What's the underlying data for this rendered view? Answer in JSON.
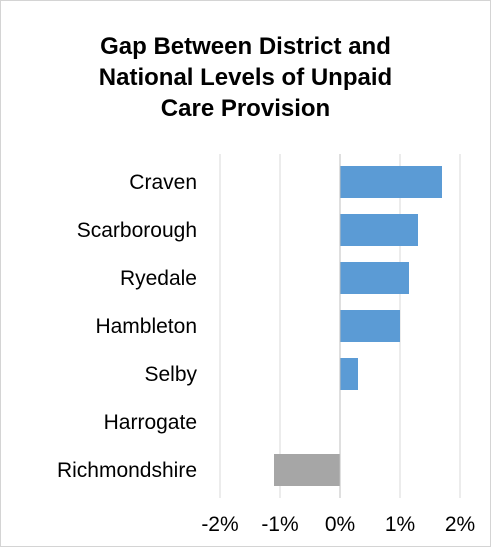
{
  "chart_data": {
    "type": "bar",
    "orientation": "horizontal",
    "title_lines": [
      "Gap Between District and",
      "National Levels of Unpaid",
      "Care Provision"
    ],
    "categories": [
      "Craven",
      "Scarborough",
      "Ryedale",
      "Hambleton",
      "Selby",
      "Harrogate",
      "Richmondshire"
    ],
    "values": [
      1.7,
      1.3,
      1.15,
      1.0,
      0.3,
      0.0,
      -1.1
    ],
    "xlim": [
      -2,
      2
    ],
    "x_ticks": [
      -2,
      -1,
      0,
      1,
      2
    ],
    "x_tick_labels": [
      "-2%",
      "-1%",
      "0%",
      "1%",
      "2%"
    ],
    "grid": "vertical",
    "legend": "none",
    "colors": {
      "positive": "#5b9bd5",
      "negative": "#a6a6a6",
      "gridline": "#d9d9d9",
      "axis": "#bfbfbf"
    }
  }
}
